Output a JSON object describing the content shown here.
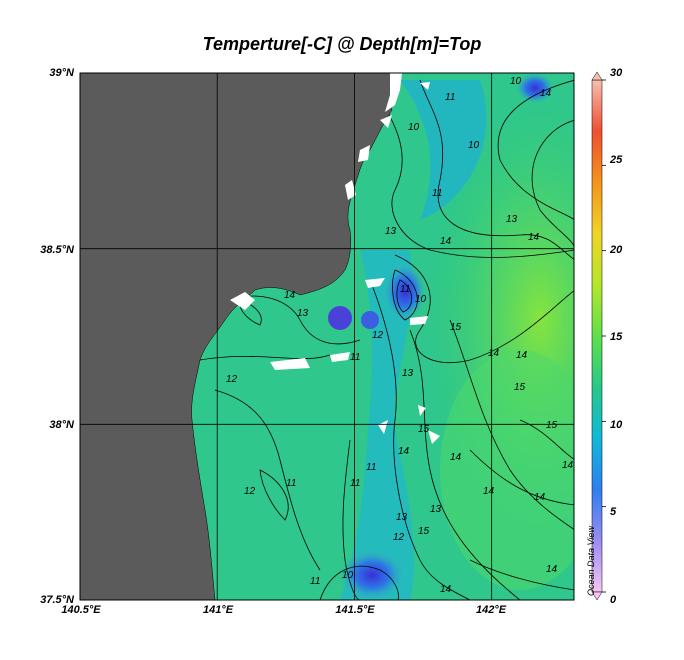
{
  "title": "Temperture[-C] @ Depth[m]=Top",
  "credit": "Ocean Data View",
  "lat_labels": [
    "39°N",
    "38.5°N",
    "38°N",
    "37.5°N"
  ],
  "lon_labels": [
    "140.5°E",
    "141°E",
    "141.5°E",
    "142°E"
  ],
  "colorbar": {
    "min": 0,
    "max": 30,
    "ticks": [
      "30",
      "25",
      "20",
      "15",
      "10",
      "5",
      "0"
    ],
    "stops": [
      "#f7c6f2",
      "#9b8cf0",
      "#2f7ff0",
      "#12b8d8",
      "#27c88a",
      "#5fe04a",
      "#b6e62c",
      "#f0d42a",
      "#f5941c",
      "#ee5030",
      "#f4c0b0"
    ]
  },
  "colors": {
    "land": "#5b5b5b",
    "shallow": "#2fc78b",
    "cold": "#2a6fe0",
    "warm": "#74e04a",
    "grid": "#000000"
  },
  "map_data": {
    "lon_range": [
      140.5,
      142.3
    ],
    "lat_range": [
      37.5,
      39.0
    ],
    "variable": "Temperature",
    "unit": "-C",
    "depth": "Top",
    "contour_labels": [
      "10",
      "11",
      "12",
      "13",
      "14",
      "15"
    ]
  }
}
